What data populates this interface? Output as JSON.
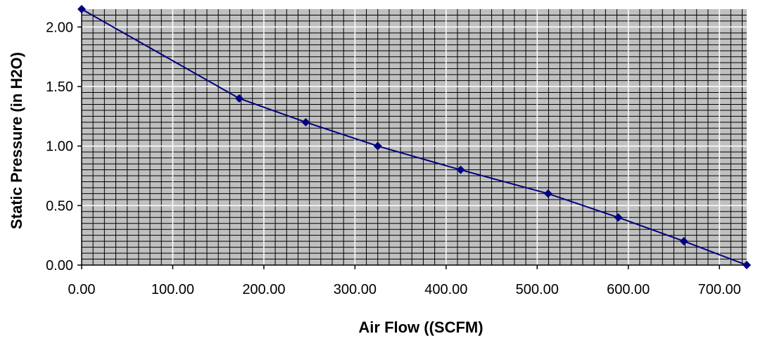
{
  "chart_data": {
    "type": "line",
    "title": "",
    "xlabel": "Air Flow ((SCFM)",
    "ylabel": "Static Pressure (in H2O)",
    "xlim": [
      0,
      730
    ],
    "ylim": [
      0,
      2.15
    ],
    "xticks": [
      0,
      100,
      200,
      300,
      400,
      500,
      600,
      700
    ],
    "xtick_labels": [
      "0.00",
      "100.00",
      "200.00",
      "300.00",
      "400.00",
      "500.00",
      "600.00",
      "700.00"
    ],
    "yticks": [
      0,
      0.5,
      1.0,
      1.5,
      2.0
    ],
    "ytick_labels": [
      "0.00",
      "0.50",
      "1.00",
      "1.50",
      "2.00"
    ],
    "x_minor_step": 12.5,
    "y_minor_step": 0.05,
    "grid": true,
    "legend": "none",
    "colors": {
      "plot_background": "#c0c0c0",
      "minor_grid": "#000000",
      "major_grid": "#ffffff",
      "series": "#000080"
    },
    "series": [
      {
        "marker": "diamond",
        "x": [
          0,
          173,
          246,
          325,
          416,
          512,
          589,
          661,
          730
        ],
        "y": [
          2.15,
          1.4,
          1.2,
          1.0,
          0.8,
          0.6,
          0.4,
          0.2,
          0.0
        ]
      }
    ]
  }
}
